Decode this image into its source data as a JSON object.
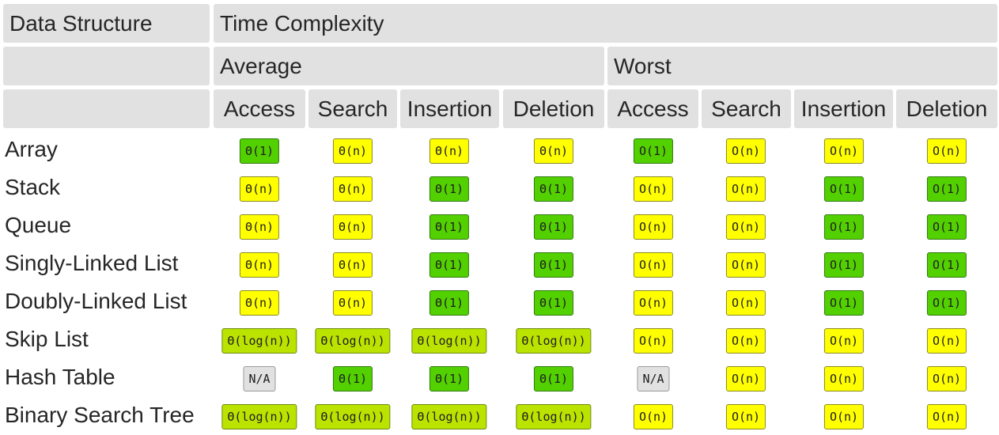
{
  "headers": {
    "data_structure": "Data Structure",
    "time_complexity": "Time Complexity",
    "average": "Average",
    "worst": "Worst",
    "columns": [
      "Access",
      "Search",
      "Insertion",
      "Deletion",
      "Access",
      "Search",
      "Insertion",
      "Deletion"
    ]
  },
  "colors": {
    "header_bg": "#e1e1e1",
    "yellow": "#ffff00",
    "green": "#53d000",
    "lime": "#bbe300",
    "gray": "#e1e1e1"
  },
  "rows": [
    {
      "name": "Array",
      "cells": [
        {
          "text": "Θ(1)",
          "rating": "green"
        },
        {
          "text": "Θ(n)",
          "rating": "yellow"
        },
        {
          "text": "Θ(n)",
          "rating": "yellow"
        },
        {
          "text": "Θ(n)",
          "rating": "yellow"
        },
        {
          "text": "O(1)",
          "rating": "green"
        },
        {
          "text": "O(n)",
          "rating": "yellow"
        },
        {
          "text": "O(n)",
          "rating": "yellow"
        },
        {
          "text": "O(n)",
          "rating": "yellow"
        }
      ]
    },
    {
      "name": "Stack",
      "cells": [
        {
          "text": "Θ(n)",
          "rating": "yellow"
        },
        {
          "text": "Θ(n)",
          "rating": "yellow"
        },
        {
          "text": "Θ(1)",
          "rating": "green"
        },
        {
          "text": "Θ(1)",
          "rating": "green"
        },
        {
          "text": "O(n)",
          "rating": "yellow"
        },
        {
          "text": "O(n)",
          "rating": "yellow"
        },
        {
          "text": "O(1)",
          "rating": "green"
        },
        {
          "text": "O(1)",
          "rating": "green"
        }
      ]
    },
    {
      "name": "Queue",
      "cells": [
        {
          "text": "Θ(n)",
          "rating": "yellow"
        },
        {
          "text": "Θ(n)",
          "rating": "yellow"
        },
        {
          "text": "Θ(1)",
          "rating": "green"
        },
        {
          "text": "Θ(1)",
          "rating": "green"
        },
        {
          "text": "O(n)",
          "rating": "yellow"
        },
        {
          "text": "O(n)",
          "rating": "yellow"
        },
        {
          "text": "O(1)",
          "rating": "green"
        },
        {
          "text": "O(1)",
          "rating": "green"
        }
      ]
    },
    {
      "name": "Singly-Linked List",
      "cells": [
        {
          "text": "Θ(n)",
          "rating": "yellow"
        },
        {
          "text": "Θ(n)",
          "rating": "yellow"
        },
        {
          "text": "Θ(1)",
          "rating": "green"
        },
        {
          "text": "Θ(1)",
          "rating": "green"
        },
        {
          "text": "O(n)",
          "rating": "yellow"
        },
        {
          "text": "O(n)",
          "rating": "yellow"
        },
        {
          "text": "O(1)",
          "rating": "green"
        },
        {
          "text": "O(1)",
          "rating": "green"
        }
      ]
    },
    {
      "name": "Doubly-Linked List",
      "cells": [
        {
          "text": "Θ(n)",
          "rating": "yellow"
        },
        {
          "text": "Θ(n)",
          "rating": "yellow"
        },
        {
          "text": "Θ(1)",
          "rating": "green"
        },
        {
          "text": "Θ(1)",
          "rating": "green"
        },
        {
          "text": "O(n)",
          "rating": "yellow"
        },
        {
          "text": "O(n)",
          "rating": "yellow"
        },
        {
          "text": "O(1)",
          "rating": "green"
        },
        {
          "text": "O(1)",
          "rating": "green"
        }
      ]
    },
    {
      "name": "Skip List",
      "cells": [
        {
          "text": "Θ(log(n))",
          "rating": "lime"
        },
        {
          "text": "Θ(log(n))",
          "rating": "lime"
        },
        {
          "text": "Θ(log(n))",
          "rating": "lime"
        },
        {
          "text": "Θ(log(n))",
          "rating": "lime"
        },
        {
          "text": "O(n)",
          "rating": "yellow"
        },
        {
          "text": "O(n)",
          "rating": "yellow"
        },
        {
          "text": "O(n)",
          "rating": "yellow"
        },
        {
          "text": "O(n)",
          "rating": "yellow"
        }
      ]
    },
    {
      "name": "Hash Table",
      "cells": [
        {
          "text": "N/A",
          "rating": "gray"
        },
        {
          "text": "Θ(1)",
          "rating": "green"
        },
        {
          "text": "Θ(1)",
          "rating": "green"
        },
        {
          "text": "Θ(1)",
          "rating": "green"
        },
        {
          "text": "N/A",
          "rating": "gray"
        },
        {
          "text": "O(n)",
          "rating": "yellow"
        },
        {
          "text": "O(n)",
          "rating": "yellow"
        },
        {
          "text": "O(n)",
          "rating": "yellow"
        }
      ]
    },
    {
      "name": "Binary Search Tree",
      "cells": [
        {
          "text": "Θ(log(n))",
          "rating": "lime"
        },
        {
          "text": "Θ(log(n))",
          "rating": "lime"
        },
        {
          "text": "Θ(log(n))",
          "rating": "lime"
        },
        {
          "text": "Θ(log(n))",
          "rating": "lime"
        },
        {
          "text": "O(n)",
          "rating": "yellow"
        },
        {
          "text": "O(n)",
          "rating": "yellow"
        },
        {
          "text": "O(n)",
          "rating": "yellow"
        },
        {
          "text": "O(n)",
          "rating": "yellow"
        }
      ]
    }
  ]
}
